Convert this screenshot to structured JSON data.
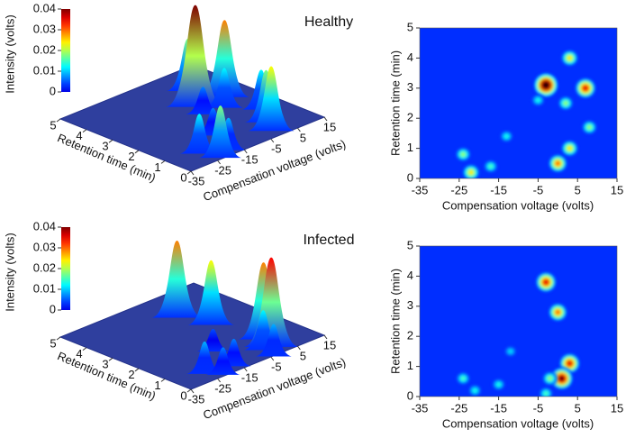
{
  "chart_data": [
    {
      "type": "heatmap",
      "label": "Healthy",
      "zlabel": "Intensity (volts)",
      "zlim": [
        0,
        0.04
      ],
      "zticks": [
        0,
        0.01,
        0.02,
        0.03,
        0.04
      ],
      "xlabel": "Compensation voltage (volts)",
      "xlim": [
        -35,
        15
      ],
      "xticks": [
        -35,
        -25,
        -15,
        -5,
        5,
        15
      ],
      "ylabel": "Retention time (min)",
      "ylim": [
        0,
        5
      ],
      "yticks": [
        0,
        1,
        2,
        3,
        4,
        5
      ],
      "peaks": {
        "x": [
          -3,
          7,
          3,
          -24,
          -22,
          0,
          3,
          2,
          8,
          -17,
          -13,
          -5
        ],
        "y": [
          3.1,
          3.0,
          4.0,
          0.8,
          0.2,
          0.5,
          1.0,
          2.5,
          1.7,
          0.4,
          1.4,
          2.6
        ],
        "values": [
          0.04,
          0.03,
          0.02,
          0.015,
          0.02,
          0.025,
          0.02,
          0.015,
          0.015,
          0.012,
          0.01,
          0.01
        ]
      }
    },
    {
      "type": "heatmap",
      "label": "Infected",
      "zlabel": "Intensity (volts)",
      "zlim": [
        0,
        0.04
      ],
      "zticks": [
        0,
        0.01,
        0.02,
        0.03,
        0.04
      ],
      "xlabel": "Compensation voltage (volts)",
      "xlim": [
        -35,
        15
      ],
      "xticks": [
        -35,
        -25,
        -15,
        -5,
        5,
        15
      ],
      "ylabel": "Retention time (min)",
      "ylim": [
        0,
        5
      ],
      "yticks": [
        0,
        1,
        2,
        3,
        4,
        5
      ],
      "peaks": {
        "x": [
          -3,
          0,
          3,
          1,
          -24,
          -21,
          -15,
          -12,
          -3,
          -2
        ],
        "y": [
          3.8,
          2.8,
          1.1,
          0.6,
          0.6,
          0.2,
          0.4,
          1.5,
          0.1,
          0.6
        ],
        "values": [
          0.03,
          0.025,
          0.03,
          0.035,
          0.012,
          0.01,
          0.01,
          0.008,
          0.012,
          0.015
        ]
      }
    }
  ]
}
